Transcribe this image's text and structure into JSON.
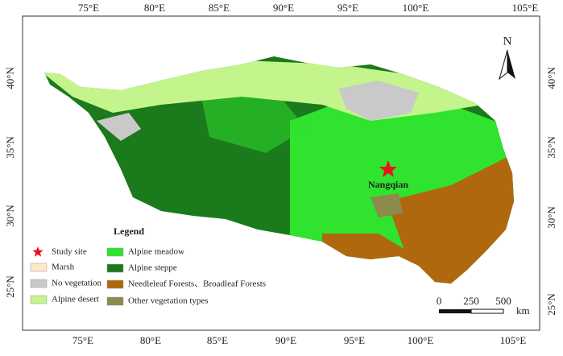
{
  "map": {
    "top_labels": [
      "75°E",
      "80°E",
      "85°E",
      "90°E",
      "95°E",
      "100°E",
      "105°E"
    ],
    "bottom_labels": [
      "75°E",
      "80°E",
      "85°E",
      "90°E",
      "95°E",
      "100°E",
      "105°E"
    ],
    "left_labels": [
      "40°N",
      "35°N",
      "30°N",
      "25°N"
    ],
    "right_labels": [
      "40°N",
      "35°N",
      "30°N",
      "25°N"
    ],
    "north": "N",
    "site_label": "Nangqian",
    "legend": {
      "title": "Legend",
      "items": [
        {
          "label": "Study site",
          "color": "#e8141c"
        },
        {
          "label": "Marsh",
          "color": "#fde9c6"
        },
        {
          "label": "No vegetation",
          "color": "#c9c9c9"
        },
        {
          "label": "Alpine desert",
          "color": "#c4f58c"
        },
        {
          "label": "Alpine meadow",
          "color": "#2fe32f"
        },
        {
          "label": "Alpine steppe",
          "color": "#1b7a1b"
        },
        {
          "label": "Needleleaf Forests、Broadleaf Forests",
          "color": "#b0680f"
        },
        {
          "label": "Other vegetation types",
          "color": "#8c8a4c"
        }
      ]
    },
    "scale": {
      "ticks": [
        "0",
        "250",
        "500"
      ],
      "unit": "km"
    }
  }
}
